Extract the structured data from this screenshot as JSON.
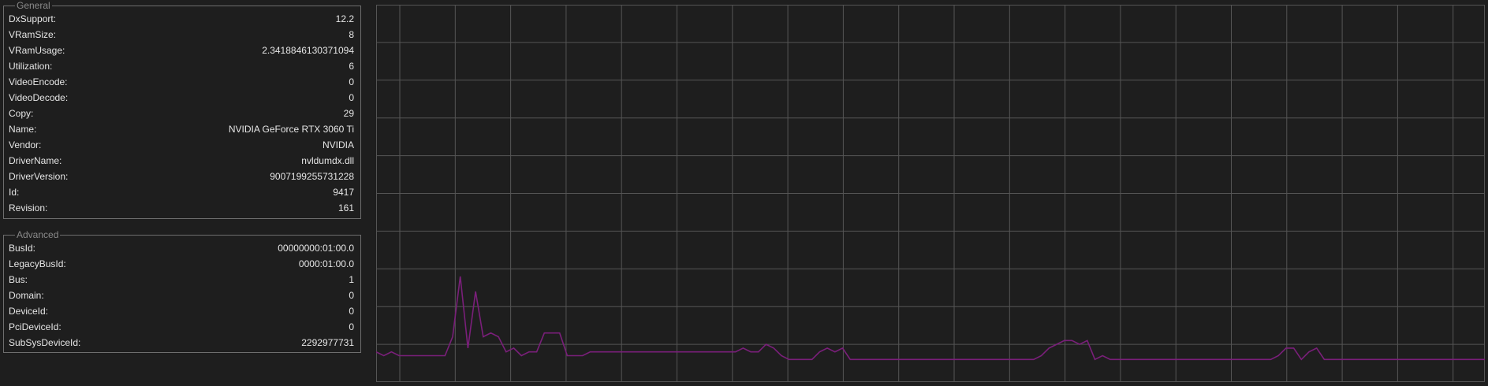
{
  "general": {
    "legend": "General",
    "rows": [
      {
        "key": "DxSupport:",
        "value": "12.2"
      },
      {
        "key": "VRamSize:",
        "value": "8"
      },
      {
        "key": "VRamUsage:",
        "value": "2.3418846130371094"
      },
      {
        "key": "Utilization:",
        "value": "6"
      },
      {
        "key": "VideoEncode:",
        "value": "0"
      },
      {
        "key": "VideoDecode:",
        "value": "0"
      },
      {
        "key": "Copy:",
        "value": "29"
      },
      {
        "key": "Name:",
        "value": "NVIDIA GeForce RTX 3060 Ti"
      },
      {
        "key": "Vendor:",
        "value": "NVIDIA"
      },
      {
        "key": "DriverName:",
        "value": "nvldumdx.dll"
      },
      {
        "key": "DriverVersion:",
        "value": "9007199255731228"
      },
      {
        "key": "Id:",
        "value": "9417"
      },
      {
        "key": "Revision:",
        "value": "161"
      }
    ]
  },
  "advanced": {
    "legend": "Advanced",
    "rows": [
      {
        "key": "BusId:",
        "value": "00000000:01:00.0"
      },
      {
        "key": "LegacyBusId:",
        "value": "0000:01:00.0"
      },
      {
        "key": "Bus:",
        "value": "1"
      },
      {
        "key": "Domain:",
        "value": "0"
      },
      {
        "key": "DeviceId:",
        "value": "0"
      },
      {
        "key": "PciDeviceId:",
        "value": "0"
      },
      {
        "key": "SubSysDeviceId:",
        "value": "2292977731"
      }
    ]
  },
  "chart_data": {
    "type": "line",
    "title": "",
    "xlabel": "",
    "ylabel": "",
    "ylim": [
      0,
      100
    ],
    "grid": true,
    "line_color": "#7a1f7a",
    "grid_color": "#555555",
    "series": [
      {
        "values": [
          8,
          7,
          8,
          7,
          7,
          7,
          7,
          7,
          7,
          7,
          12,
          28,
          9,
          24,
          12,
          13,
          12,
          8,
          9,
          7,
          8,
          8,
          13,
          13,
          13,
          7,
          7,
          7,
          8,
          8,
          8,
          8,
          8,
          8,
          8,
          8,
          8,
          8,
          8,
          8,
          8,
          8,
          8,
          8,
          8,
          8,
          8,
          8,
          9,
          8,
          8,
          10,
          9,
          7,
          6,
          6,
          6,
          6,
          8,
          9,
          8,
          9,
          6,
          6,
          6,
          6,
          6,
          6,
          6,
          6,
          6,
          6,
          6,
          6,
          6,
          6,
          6,
          6,
          6,
          6,
          6,
          6,
          6,
          6,
          6,
          6,
          6,
          7,
          9,
          10,
          11,
          11,
          10,
          11,
          6,
          7,
          6,
          6,
          6,
          6,
          6,
          6,
          6,
          6,
          6,
          6,
          6,
          6,
          6,
          6,
          6,
          6,
          6,
          6,
          6,
          6,
          6,
          6,
          7,
          9,
          9,
          6,
          8,
          9,
          6,
          6,
          6,
          6,
          6,
          6,
          6,
          6,
          6,
          6,
          6,
          6,
          6,
          6,
          6,
          6,
          6,
          6,
          6,
          6,
          6,
          6
        ]
      }
    ]
  }
}
